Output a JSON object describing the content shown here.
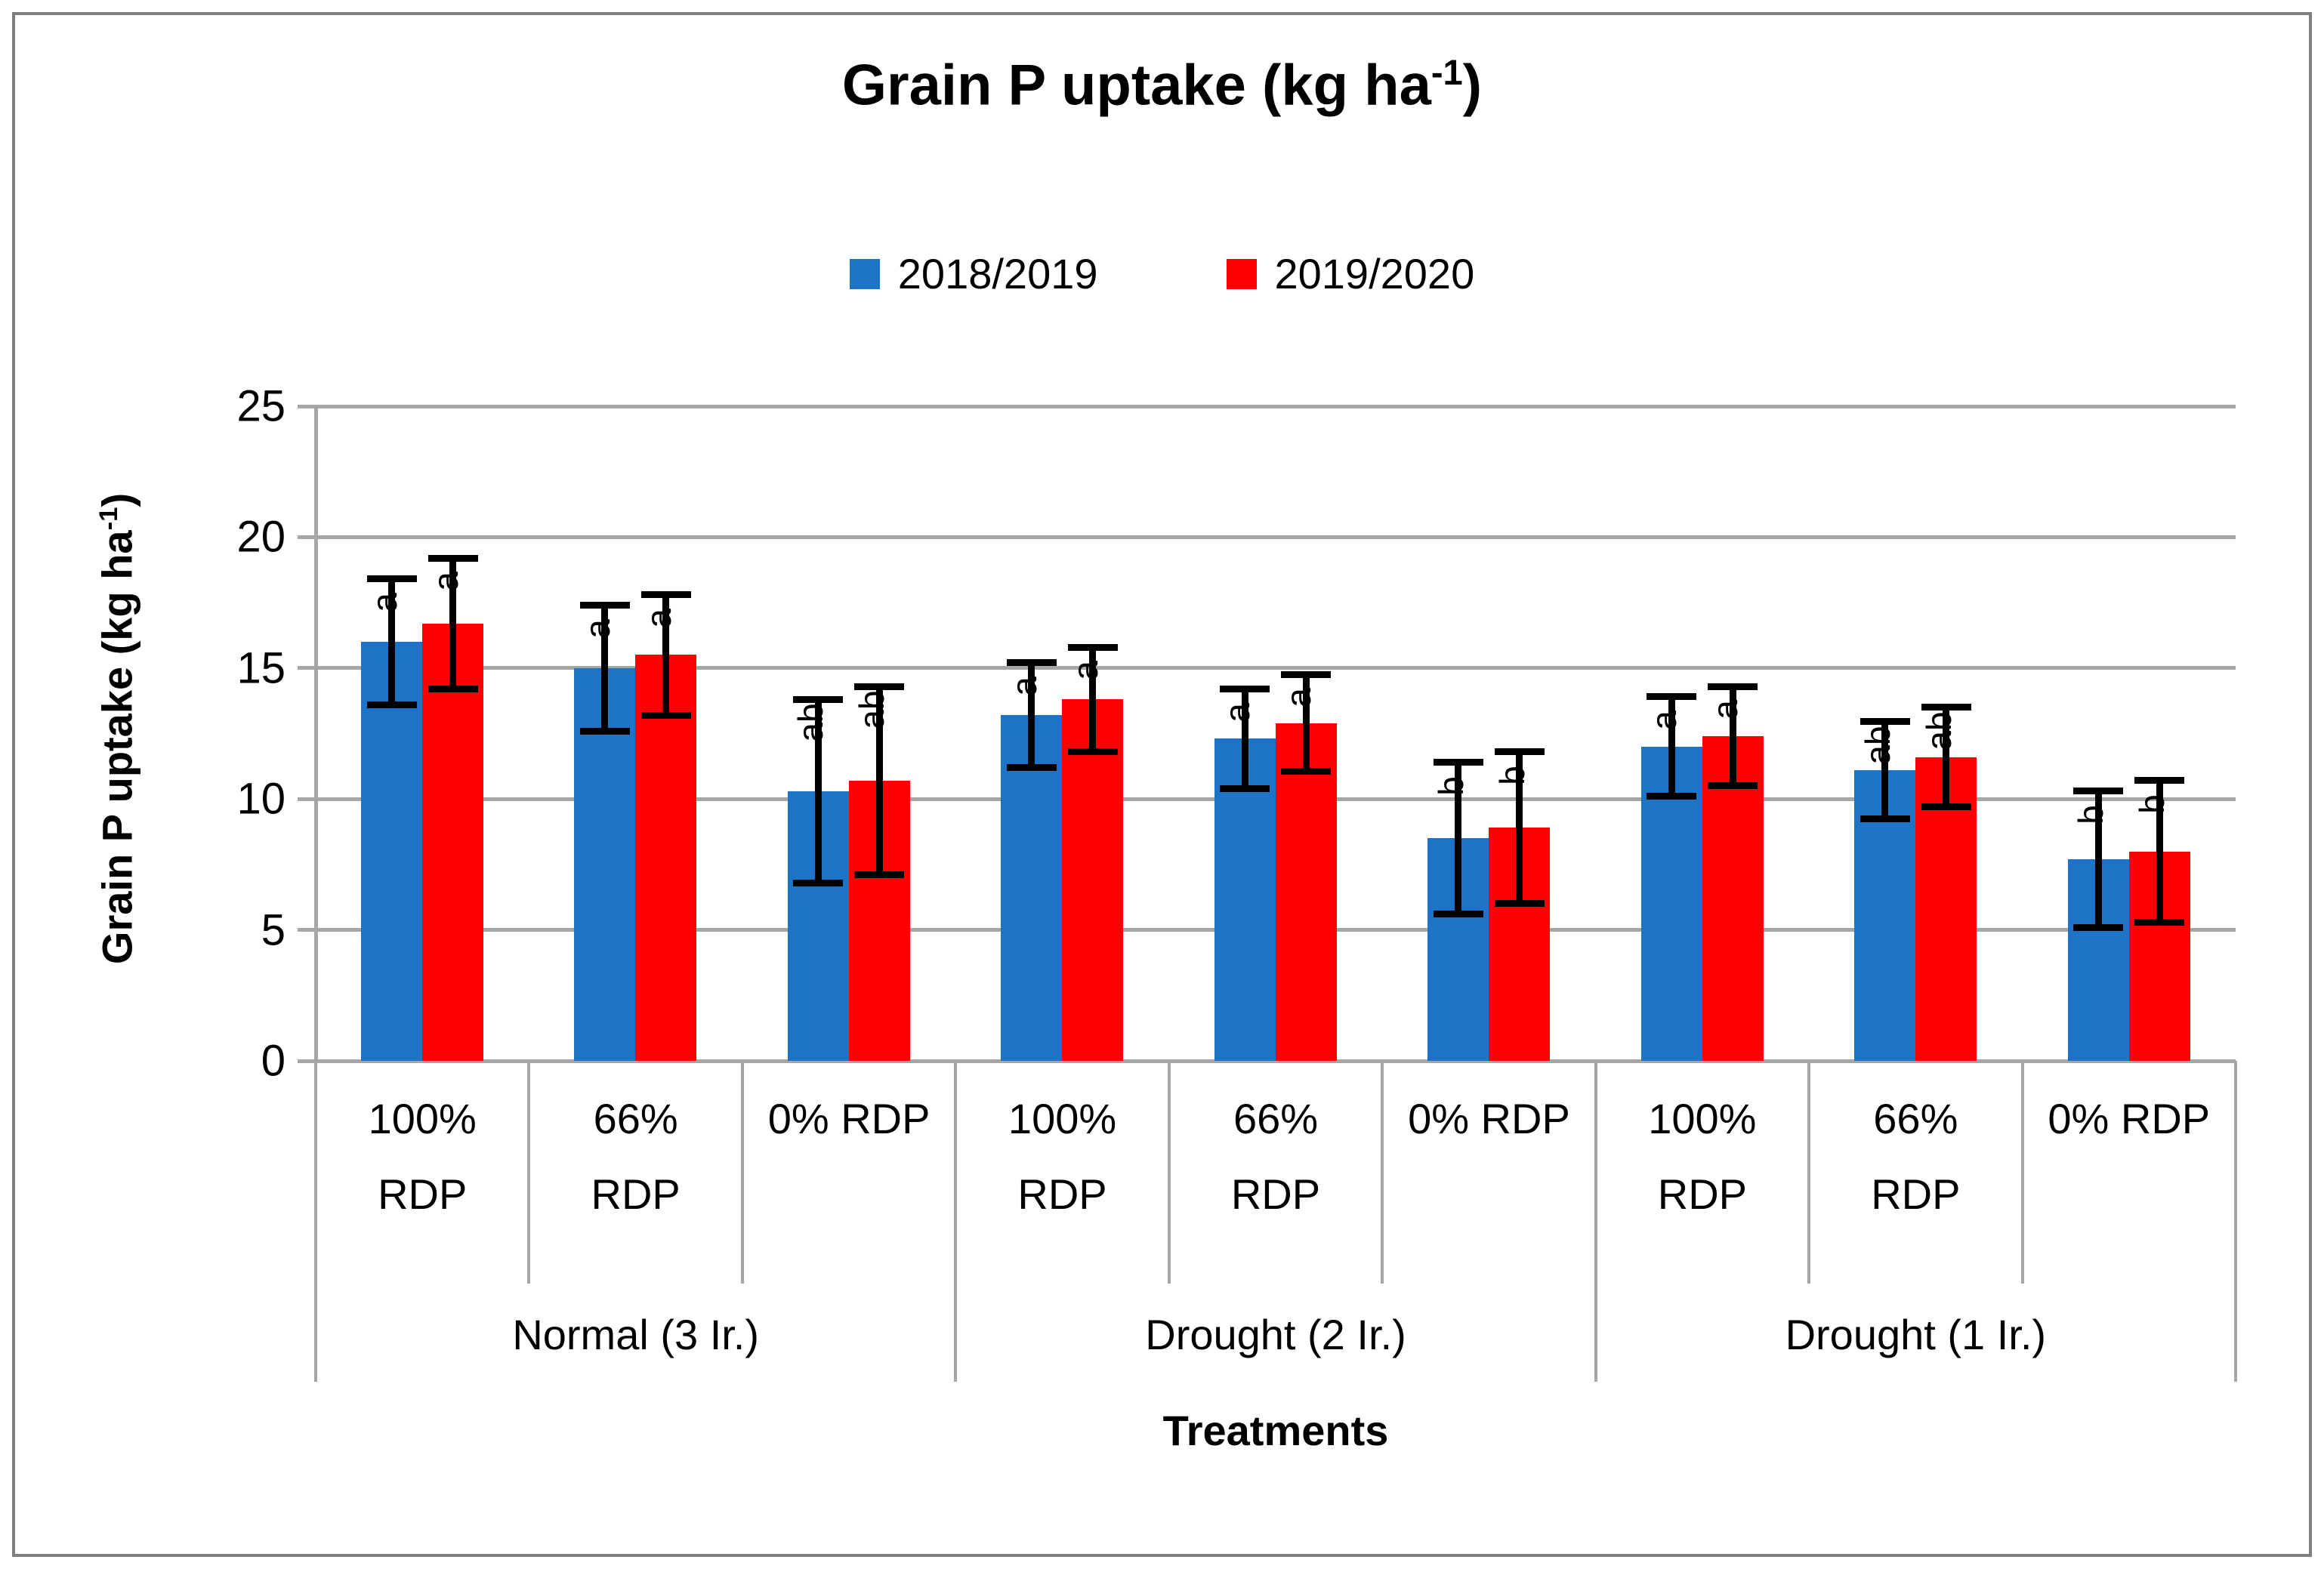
{
  "figure_title": {
    "prefix": "Grain P uptake (kg ha",
    "sup": "-1",
    "suffix": ")"
  },
  "y_axis_title": {
    "prefix": "Grain P uptake (kg ha",
    "sup": "-1",
    "suffix": ")"
  },
  "x_axis_title": "Treatments",
  "colors": {
    "series1": "#1b74c5",
    "series2": "#ff0000",
    "gridline": "#a6a6a6",
    "error_bar": "#000000",
    "frame_border": "#7f7f7f"
  },
  "chart_data": {
    "type": "bar",
    "title": "Grain P uptake (kg ha-1)",
    "xlabel": "Treatments",
    "ylabel": "Grain P uptake (kg ha-1)",
    "ylim": [
      0,
      25
    ],
    "yticks": [
      0,
      5,
      10,
      15,
      20,
      25
    ],
    "grid": true,
    "legend_position": "top",
    "category_lines": [
      [
        "100%",
        "RDP"
      ],
      [
        "66%",
        "RDP"
      ],
      [
        "0% RDP"
      ]
    ],
    "categories": [
      "100% RDP",
      "66% RDP",
      "0% RDP",
      "100% RDP",
      "66% RDP",
      "0% RDP",
      "100% RDP",
      "66% RDP",
      "0% RDP"
    ],
    "groups": [
      "Normal (3 Ir.)",
      "Drought (2 Ir.)",
      "Drought (1 Ir.)"
    ],
    "series": [
      {
        "name": "2018/2019",
        "color": "#1b74c5",
        "values": [
          16.0,
          15.0,
          10.3,
          13.2,
          12.3,
          8.5,
          12.0,
          11.1,
          7.7
        ],
        "errors": [
          2.4,
          2.4,
          3.5,
          2.0,
          1.9,
          2.9,
          1.9,
          1.85,
          2.6
        ],
        "letters": [
          "a",
          "a",
          "ab",
          "a",
          "a",
          "b",
          "a",
          "ab",
          "b"
        ]
      },
      {
        "name": "2019/2020",
        "color": "#ff0000",
        "values": [
          16.7,
          15.5,
          10.7,
          13.8,
          12.9,
          8.9,
          12.4,
          11.6,
          8.0
        ],
        "errors": [
          2.5,
          2.3,
          3.6,
          2.0,
          1.85,
          2.9,
          1.9,
          1.9,
          2.7
        ],
        "letters": [
          "a",
          "a",
          "ab",
          "a",
          "a",
          "b",
          "a",
          "ab",
          "b"
        ]
      }
    ]
  }
}
